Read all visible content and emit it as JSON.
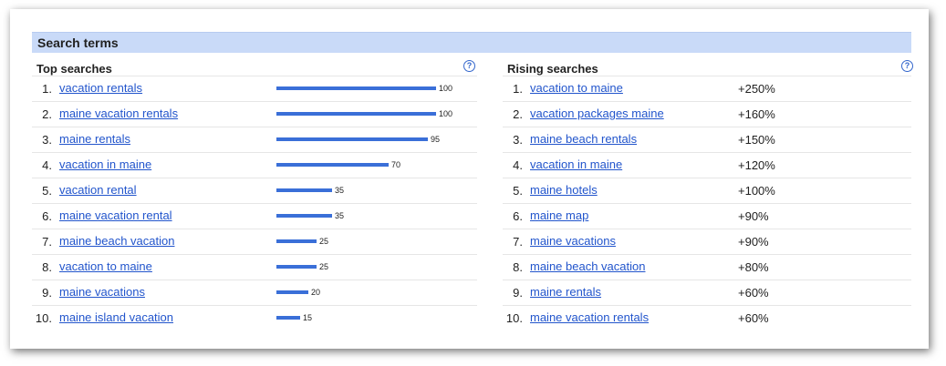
{
  "section_title": "Search terms",
  "help_glyph": "?",
  "accent_color": "#3a6fd8",
  "link_color": "#2255cc",
  "header_bg": "#c9daf8",
  "top_searches": {
    "title": "Top searches",
    "items": [
      {
        "rank": "1.",
        "term": "vacation rentals",
        "value": 100,
        "value_label": "100"
      },
      {
        "rank": "2.",
        "term": "maine vacation rentals",
        "value": 100,
        "value_label": "100"
      },
      {
        "rank": "3.",
        "term": "maine rentals",
        "value": 95,
        "value_label": "95"
      },
      {
        "rank": "4.",
        "term": "vacation in maine",
        "value": 70,
        "value_label": "70"
      },
      {
        "rank": "5.",
        "term": "vacation rental",
        "value": 35,
        "value_label": "35"
      },
      {
        "rank": "6.",
        "term": "maine vacation rental",
        "value": 35,
        "value_label": "35"
      },
      {
        "rank": "7.",
        "term": "maine beach vacation",
        "value": 25,
        "value_label": "25"
      },
      {
        "rank": "8.",
        "term": "vacation to maine",
        "value": 25,
        "value_label": "25"
      },
      {
        "rank": "9.",
        "term": "maine vacations",
        "value": 20,
        "value_label": "20"
      },
      {
        "rank": "10.",
        "term": "maine island vacation",
        "value": 15,
        "value_label": "15"
      }
    ]
  },
  "rising_searches": {
    "title": "Rising searches",
    "items": [
      {
        "rank": "1.",
        "term": "vacation to maine",
        "change": "+250%"
      },
      {
        "rank": "2.",
        "term": "vacation packages maine",
        "change": "+160%"
      },
      {
        "rank": "3.",
        "term": "maine beach rentals",
        "change": "+150%"
      },
      {
        "rank": "4.",
        "term": "vacation in maine",
        "change": "+120%"
      },
      {
        "rank": "5.",
        "term": "maine hotels",
        "change": "+100%"
      },
      {
        "rank": "6.",
        "term": "maine map",
        "change": "+90%"
      },
      {
        "rank": "7.",
        "term": "maine vacations",
        "change": "+90%"
      },
      {
        "rank": "8.",
        "term": "maine beach vacation",
        "change": "+80%"
      },
      {
        "rank": "9.",
        "term": "maine rentals",
        "change": "+60%"
      },
      {
        "rank": "10.",
        "term": "maine vacation rentals",
        "change": "+60%"
      }
    ]
  }
}
